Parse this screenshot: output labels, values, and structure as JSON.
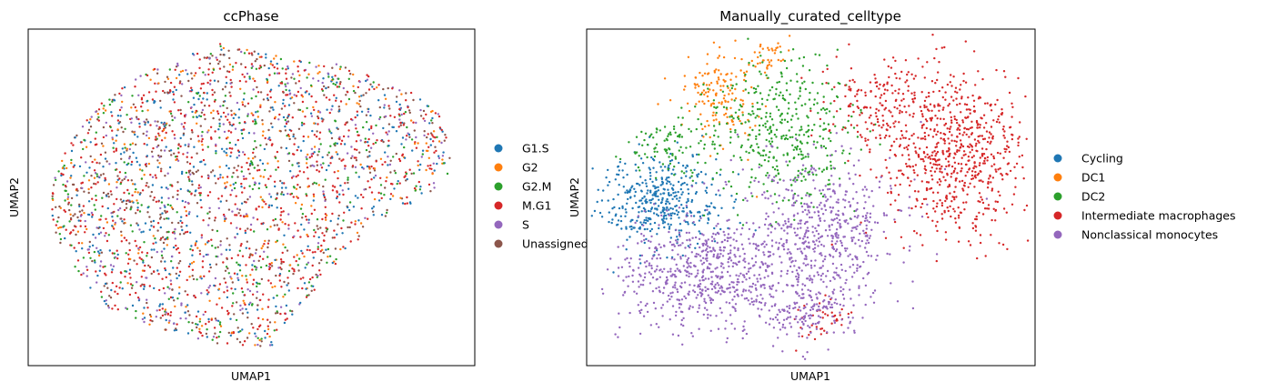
{
  "chart_data": [
    {
      "type": "scatter",
      "title": "ccPhase",
      "xlabel": "UMAP1",
      "ylabel": "UMAP2",
      "grid": false,
      "ticks": false,
      "legend_position": "right, outside plot",
      "series": [
        {
          "name": "G1.S",
          "color": "#1f77b4"
        },
        {
          "name": "G2",
          "color": "#ff7f0e"
        },
        {
          "name": "G2.M",
          "color": "#2ca02c"
        },
        {
          "name": "M.G1",
          "color": "#d62728"
        },
        {
          "name": "S",
          "color": "#9467bd"
        },
        {
          "name": "Unassigned",
          "color": "#8c564b"
        }
      ]
    },
    {
      "type": "scatter",
      "title": "Manually_curated_celltype",
      "xlabel": "UMAP1",
      "ylabel": "UMAP2",
      "grid": false,
      "ticks": false,
      "legend_position": "right, outside plot",
      "series": [
        {
          "name": "Cycling",
          "color": "#1f77b4"
        },
        {
          "name": "DC1",
          "color": "#ff7f0e"
        },
        {
          "name": "DC2",
          "color": "#2ca02c"
        },
        {
          "name": "Intermediate macrophages",
          "color": "#d62728"
        },
        {
          "name": "Nonclassical monocytes",
          "color": "#9467bd"
        }
      ]
    }
  ]
}
